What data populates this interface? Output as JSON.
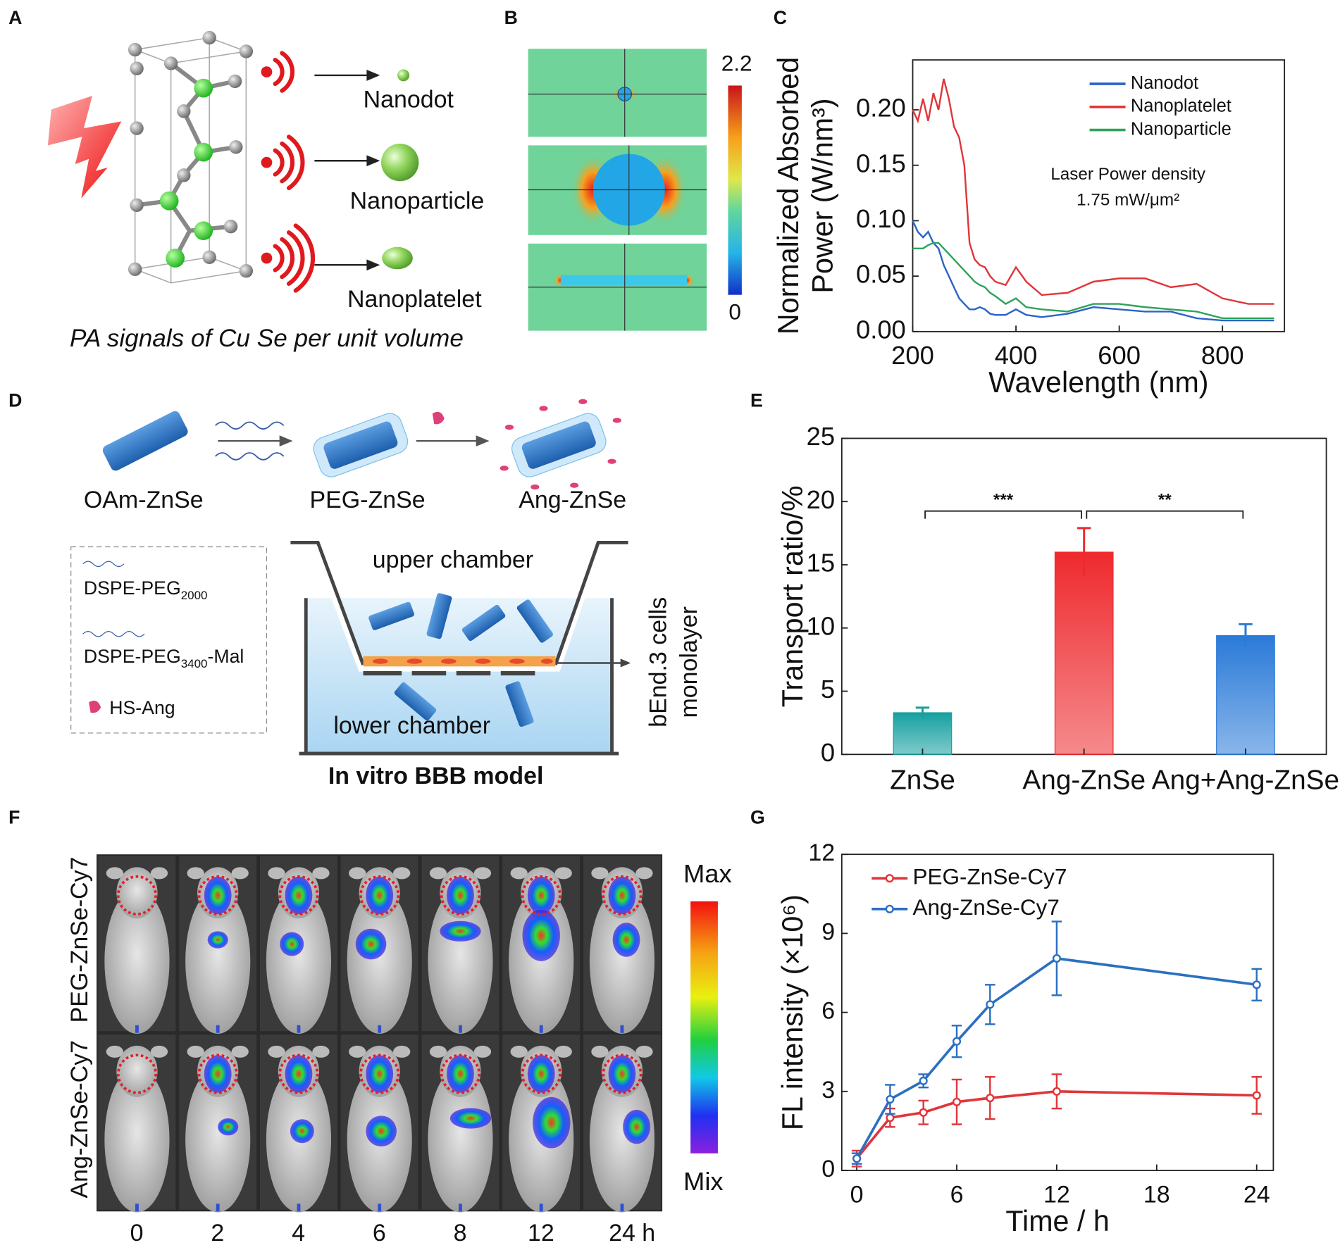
{
  "panel_A": {
    "label": "A",
    "items": [
      "Nanodot",
      "Nanoparticle",
      "Nanoplatelet"
    ],
    "caption": "PA signals of Cu Se per unit volume"
  },
  "panel_B": {
    "label": "B",
    "scale_max": "2.2",
    "scale_min": "0"
  },
  "panel_D": {
    "label": "D",
    "steps": [
      "OAm-ZnSe",
      "PEG-ZnSe",
      "Ang-ZnSe"
    ],
    "legend": [
      {
        "name": "DSPE-PEG",
        "sub": "2000"
      },
      {
        "name": "DSPE-PEG",
        "sub": "3400",
        "suffix": "-Mal"
      },
      {
        "name": "HS-Ang"
      }
    ],
    "upper": "upper  chamber",
    "lower": "lower chamber",
    "cells": [
      "bEnd.3 cells",
      "monolayer"
    ],
    "caption": "In vitro BBB model"
  },
  "panel_F": {
    "label": "F",
    "rows": [
      "PEG-ZnSe-Cy7",
      "Ang-ZnSe-Cy7"
    ],
    "times": [
      "0",
      "2",
      "4",
      "6",
      "8",
      "12",
      "24 h"
    ],
    "scale_max": "Max",
    "scale_min": "Mix"
  },
  "chart_data": [
    {
      "type": "line",
      "panel": "C",
      "xlabel": "Wavelength (nm)",
      "ylabel": [
        "Normalized Absorbed",
        "Power (W/nm³)"
      ],
      "annotations": [
        "Laser Power density",
        "1.75 mW/μm²"
      ],
      "legend": "upper right",
      "x": [
        200,
        210,
        220,
        230,
        240,
        250,
        260,
        270,
        280,
        290,
        300,
        310,
        320,
        330,
        340,
        350,
        360,
        380,
        400,
        420,
        450,
        500,
        550,
        600,
        650,
        700,
        750,
        800,
        850,
        900
      ],
      "series": [
        {
          "name": "Nanodot",
          "color": "#2b63c9",
          "values": [
            0.1,
            0.09,
            0.085,
            0.09,
            0.08,
            0.075,
            0.06,
            0.05,
            0.04,
            0.03,
            0.025,
            0.02,
            0.02,
            0.022,
            0.02,
            0.016,
            0.015,
            0.015,
            0.02,
            0.015,
            0.013,
            0.016,
            0.022,
            0.02,
            0.018,
            0.018,
            0.012,
            0.01,
            0.01,
            0.01
          ]
        },
        {
          "name": "Nanoplatelet",
          "color": "#e0363a",
          "values": [
            0.2,
            0.19,
            0.21,
            0.19,
            0.215,
            0.2,
            0.228,
            0.21,
            0.185,
            0.175,
            0.15,
            0.08,
            0.065,
            0.06,
            0.058,
            0.05,
            0.045,
            0.042,
            0.058,
            0.045,
            0.033,
            0.035,
            0.045,
            0.048,
            0.048,
            0.04,
            0.043,
            0.03,
            0.025,
            0.025
          ]
        },
        {
          "name": "Nanoparticle",
          "color": "#2ea35a",
          "values": [
            0.075,
            0.075,
            0.075,
            0.078,
            0.08,
            0.08,
            0.075,
            0.07,
            0.065,
            0.06,
            0.055,
            0.05,
            0.045,
            0.042,
            0.04,
            0.035,
            0.032,
            0.025,
            0.03,
            0.022,
            0.02,
            0.018,
            0.025,
            0.025,
            0.022,
            0.02,
            0.018,
            0.012,
            0.012,
            0.012
          ]
        }
      ],
      "xlim": [
        200,
        920
      ],
      "ylim": [
        0,
        0.245
      ],
      "xticks": [
        200,
        400,
        600,
        800
      ],
      "yticks": [
        {
          "value": 0,
          "label": "0.00"
        },
        {
          "value": 0.05,
          "label": "0.05"
        },
        {
          "value": 0.1,
          "label": "0.10"
        },
        {
          "value": 0.15,
          "label": "0.15"
        },
        {
          "value": 0.2,
          "label": "0.20"
        }
      ]
    },
    {
      "type": "bar",
      "panel": "E",
      "ylabel": "Transport ratio/%",
      "categories": [
        "ZnSe",
        "Ang-ZnSe",
        "Ang+Ang-ZnSe"
      ],
      "values": [
        3.3,
        16.0,
        9.4
      ],
      "errors": [
        0.4,
        1.9,
        0.9
      ],
      "colors": [
        "#16a0a0",
        "#ee2a2e",
        "#2a7ad8"
      ],
      "annotations": [
        "***",
        "**"
      ],
      "ylim": [
        0,
        25
      ],
      "yticks": [
        0,
        5,
        10,
        15,
        20,
        25
      ]
    },
    {
      "type": "line",
      "panel": "G",
      "xlabel": "Time / h",
      "ylabel": "FL intensity (×10⁶)",
      "legend": "upper left",
      "x": [
        0,
        2,
        4,
        6,
        8,
        12,
        24
      ],
      "series": [
        {
          "name": "PEG-ZnSe-Cy7",
          "color": "#e0363a",
          "values": [
            0.45,
            2.0,
            2.2,
            2.6,
            2.75,
            3.0,
            2.85
          ],
          "errors": [
            0.3,
            0.35,
            0.45,
            0.85,
            0.8,
            0.65,
            0.7
          ]
        },
        {
          "name": "Ang-ZnSe-Cy7",
          "color": "#2b6fc0",
          "values": [
            0.45,
            2.7,
            3.4,
            4.9,
            6.3,
            8.05,
            7.05
          ],
          "errors": [
            0.2,
            0.55,
            0.25,
            0.6,
            0.75,
            1.4,
            0.6
          ]
        }
      ],
      "xlim": [
        -0.9,
        25
      ],
      "ylim": [
        0,
        12
      ],
      "xticks": [
        0,
        6,
        12,
        18,
        24
      ],
      "yticks": [
        0,
        3,
        6,
        9,
        12
      ]
    }
  ]
}
